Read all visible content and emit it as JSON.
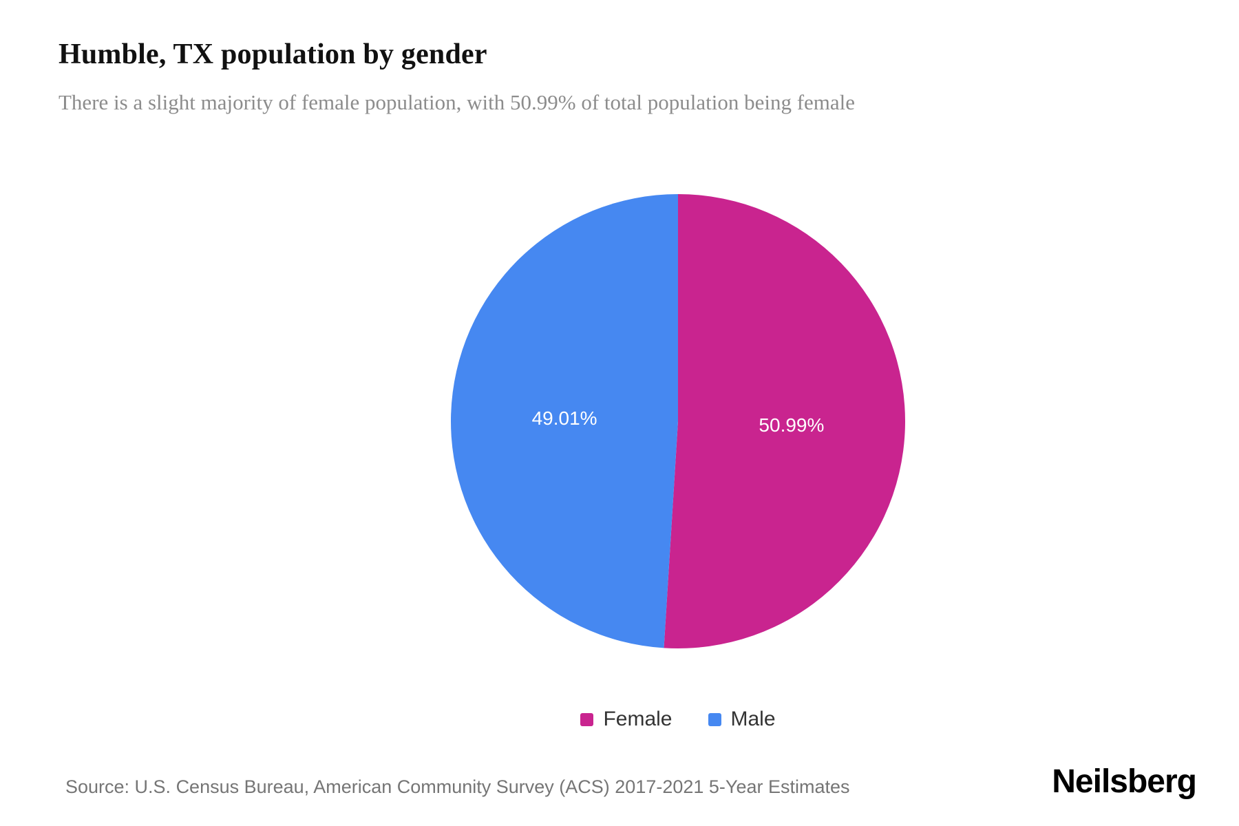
{
  "header": {
    "title": "Humble, TX population by gender",
    "subtitle": "There is a slight majority of female population, with 50.99% of total population being female"
  },
  "chart_data": {
    "type": "pie",
    "title": "Humble, TX population by gender",
    "series": [
      {
        "name": "Female",
        "value": 50.99,
        "label": "50.99%",
        "color": "#C9248F"
      },
      {
        "name": "Male",
        "value": 49.01,
        "label": "49.01%",
        "color": "#4688F1"
      }
    ],
    "start_angle_deg": 0,
    "direction": "clockwise",
    "legend_position": "bottom",
    "slice_label_color": "#ffffff"
  },
  "footer": {
    "source": "Source: U.S. Census Bureau, American Community Survey (ACS) 2017-2021 5-Year Estimates",
    "brand": "Neilsberg"
  }
}
